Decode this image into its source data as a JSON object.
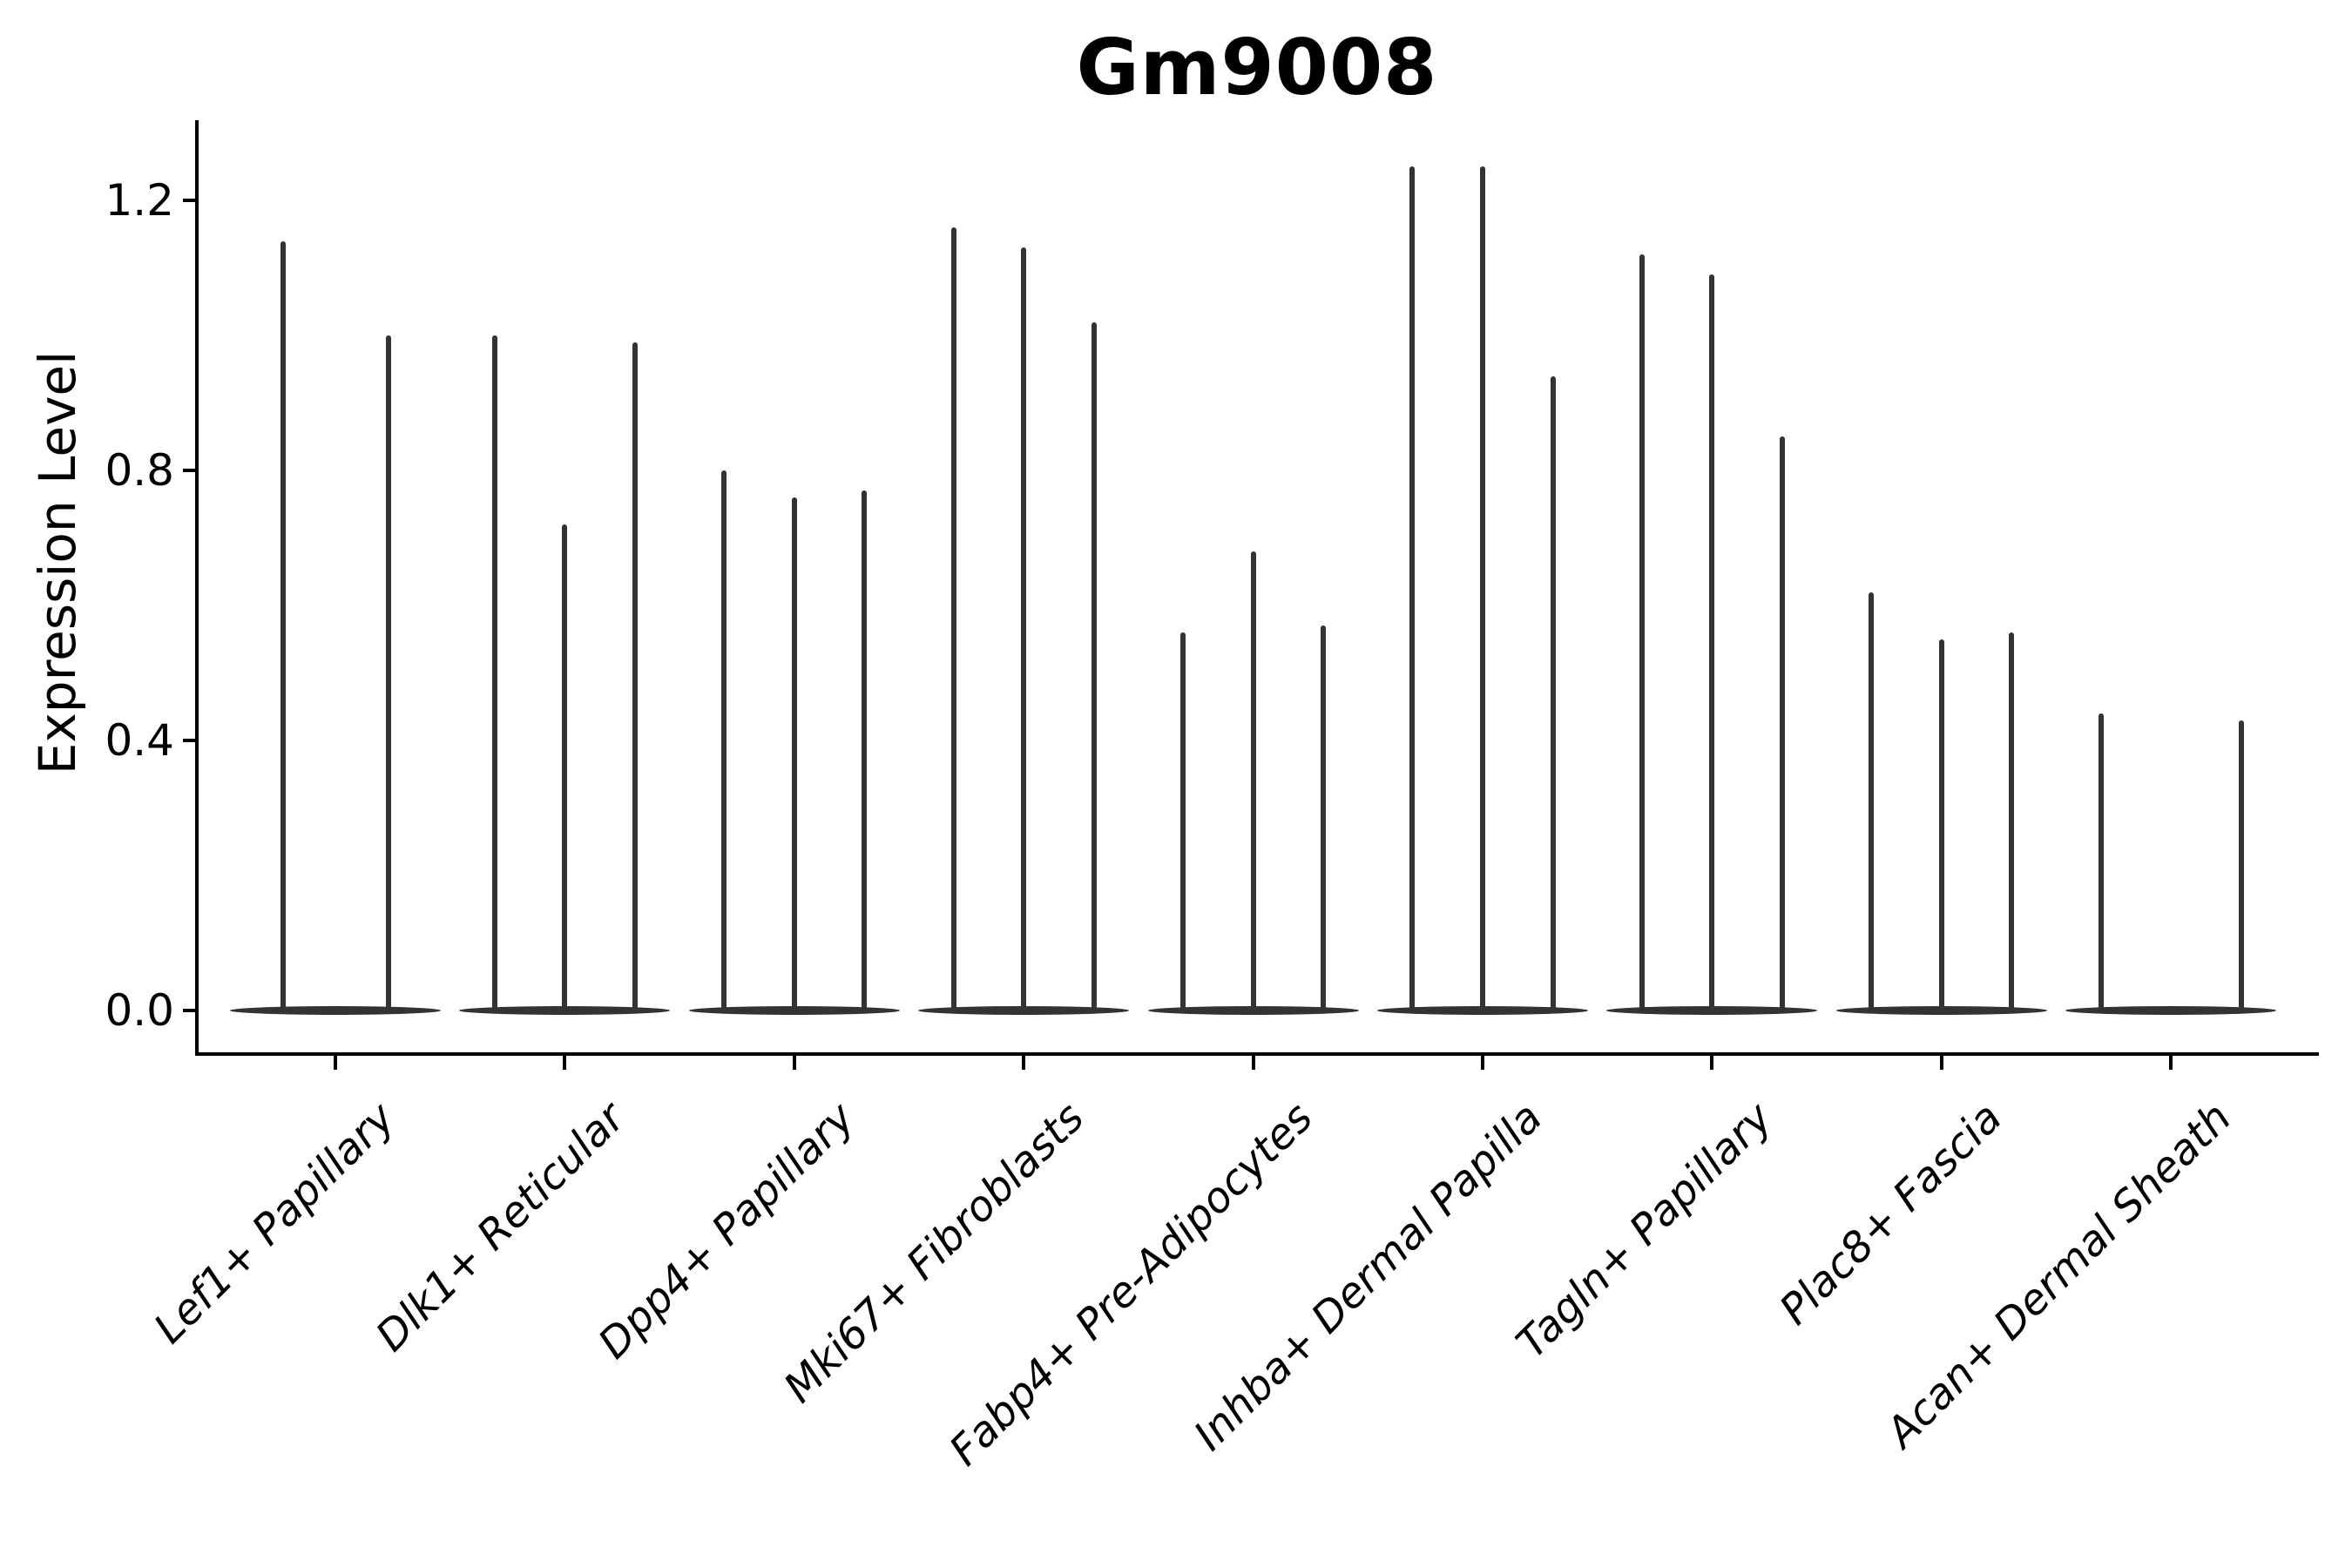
{
  "chart_data": {
    "type": "violin",
    "title": "Gm9008",
    "ylabel": "Expression Level",
    "xlabel": "",
    "ytick_labels": [
      "0.0",
      "0.4",
      "0.8",
      "1.2"
    ],
    "ytick_values": [
      0.0,
      0.4,
      0.8,
      1.2
    ],
    "ylim": [
      -0.065,
      1.33
    ],
    "grid": false,
    "legend_position": "none",
    "violin_note": "Sparse expression: each sample violin is a flat base at 0 with a single thin spike reaching its maximum expression value.",
    "categories": [
      {
        "label": "Lef1+ Papillary",
        "violin_max_values": [
          1.14,
          1.0
        ]
      },
      {
        "label": "Dlk1+ Reticular",
        "violin_max_values": [
          1.0,
          0.72,
          0.99
        ]
      },
      {
        "label": "Dpp4+ Papillary",
        "violin_max_values": [
          0.8,
          0.76,
          0.77
        ]
      },
      {
        "label": "Mki67+ Fibroblasts",
        "violin_max_values": [
          1.16,
          1.13,
          1.02
        ]
      },
      {
        "label": "Fabp4+ Pre-Adipocytes",
        "violin_max_values": [
          0.56,
          0.68,
          0.57
        ]
      },
      {
        "label": "Inhba+ Dermal Papilla",
        "violin_max_values": [
          1.25,
          1.25,
          0.94
        ]
      },
      {
        "label": "Tagln+ Papillary",
        "violin_max_values": [
          1.12,
          1.09,
          0.85
        ]
      },
      {
        "label": "Plac8+ Fascia",
        "violin_max_values": [
          0.62,
          0.55,
          0.56
        ]
      },
      {
        "label": "Acan+ Dermal Sheath",
        "violin_max_values": [
          0.44,
          0.0,
          0.43
        ]
      }
    ],
    "colors": {
      "violin": "#333333",
      "axis": "#000000",
      "text": "#000000",
      "background": "#ffffff"
    }
  }
}
